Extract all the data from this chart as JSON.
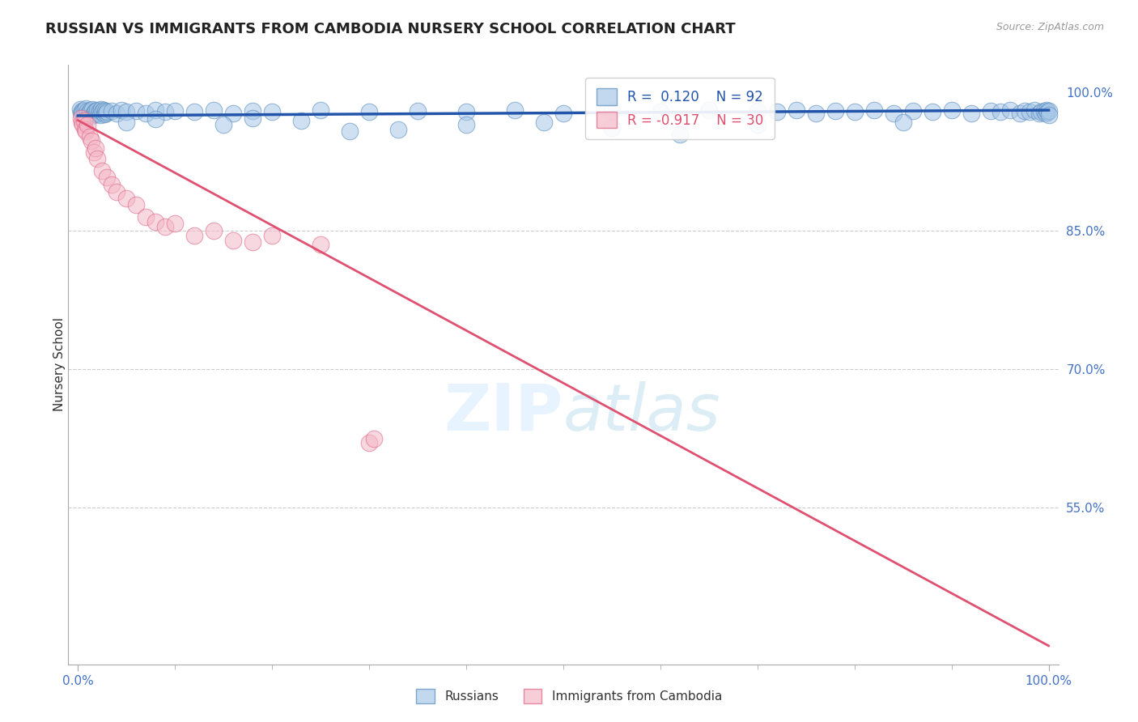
{
  "title": "RUSSIAN VS IMMIGRANTS FROM CAMBODIA NURSERY SCHOOL CORRELATION CHART",
  "source": "Source: ZipAtlas.com",
  "ylabel": "Nursery School",
  "blue_R": 0.12,
  "blue_N": 92,
  "pink_R": -0.917,
  "pink_N": 30,
  "blue_color": "#a8c8e8",
  "pink_color": "#f4b8c8",
  "blue_edge_color": "#5588bb",
  "pink_edge_color": "#e06080",
  "blue_line_color": "#2255aa",
  "pink_line_color": "#e05070",
  "grid_color": "#cccccc",
  "title_color": "#222222",
  "axis_label_color": "#4472c4",
  "yaxis_ticks": [
    55.0,
    70.0,
    85.0,
    100.0
  ],
  "ylim_min": 38,
  "ylim_max": 103,
  "xlim_min": -1,
  "xlim_max": 101,
  "blue_trend_x": [
    0,
    100
  ],
  "blue_trend_y": [
    97.5,
    98.1
  ],
  "pink_trend_x": [
    0,
    100
  ],
  "pink_trend_y": [
    97.0,
    40.0
  ],
  "blue_scatter_x": [
    0.2,
    0.3,
    0.4,
    0.5,
    0.6,
    0.7,
    0.8,
    0.9,
    1.0,
    1.1,
    1.2,
    1.3,
    1.4,
    1.5,
    1.6,
    1.7,
    1.8,
    1.9,
    2.0,
    2.1,
    2.2,
    2.3,
    2.4,
    2.5,
    2.6,
    2.7,
    2.8,
    2.9,
    3.0,
    3.5,
    4.0,
    4.5,
    5.0,
    6.0,
    7.0,
    8.0,
    9.0,
    10.0,
    12.0,
    14.0,
    16.0,
    18.0,
    20.0,
    25.0,
    30.0,
    35.0,
    40.0,
    45.0,
    50.0,
    55.0,
    60.0,
    65.0,
    70.0,
    72.0,
    74.0,
    76.0,
    78.0,
    80.0,
    82.0,
    84.0,
    86.0,
    88.0,
    90.0,
    92.0,
    94.0,
    95.0,
    96.0,
    97.0,
    97.5,
    98.0,
    98.5,
    99.0,
    99.2,
    99.5,
    99.7,
    99.8,
    99.9,
    100.0,
    100.0,
    40.0,
    28.0,
    18.0,
    62.0,
    48.0,
    33.0,
    23.0,
    15.0,
    8.0,
    5.0,
    55.0,
    70.0,
    85.0
  ],
  "blue_scatter_y": [
    98.2,
    97.8,
    98.0,
    97.9,
    98.1,
    97.7,
    98.3,
    97.6,
    98.0,
    97.8,
    97.9,
    98.1,
    97.5,
    98.2,
    97.8,
    97.9,
    98.0,
    97.7,
    98.1,
    97.8,
    98.0,
    97.6,
    98.2,
    97.9,
    98.1,
    97.7,
    98.0,
    97.8,
    97.9,
    98.0,
    97.8,
    98.1,
    97.9,
    98.0,
    97.8,
    98.1,
    97.9,
    98.0,
    97.9,
    98.1,
    97.8,
    98.0,
    97.9,
    98.1,
    97.9,
    98.0,
    97.9,
    98.1,
    97.8,
    98.0,
    97.9,
    98.1,
    98.0,
    97.9,
    98.1,
    97.8,
    98.0,
    97.9,
    98.1,
    97.8,
    98.0,
    97.9,
    98.1,
    97.8,
    98.0,
    97.9,
    98.1,
    97.8,
    98.0,
    97.9,
    98.1,
    97.8,
    97.9,
    98.0,
    97.8,
    98.1,
    97.9,
    98.0,
    97.6,
    96.5,
    95.8,
    97.2,
    95.5,
    96.8,
    96.0,
    97.0,
    96.5,
    97.1,
    96.8,
    96.2,
    96.5,
    96.8
  ],
  "pink_scatter_x": [
    0.3,
    0.4,
    0.5,
    0.6,
    0.7,
    0.8,
    1.0,
    1.2,
    1.4,
    1.6,
    1.8,
    2.0,
    2.5,
    3.0,
    3.5,
    4.0,
    5.0,
    6.0,
    7.0,
    8.0,
    9.0,
    10.0,
    12.0,
    14.0,
    16.0,
    18.0,
    20.0,
    25.0,
    30.0,
    30.5
  ],
  "pink_scatter_y": [
    97.2,
    96.8,
    96.5,
    97.0,
    96.0,
    95.8,
    96.5,
    95.2,
    94.8,
    93.5,
    94.0,
    92.8,
    91.5,
    90.8,
    90.0,
    89.2,
    88.5,
    87.8,
    86.5,
    86.0,
    85.5,
    85.8,
    84.5,
    85.0,
    84.0,
    83.8,
    84.5,
    83.5,
    62.0,
    62.5
  ]
}
